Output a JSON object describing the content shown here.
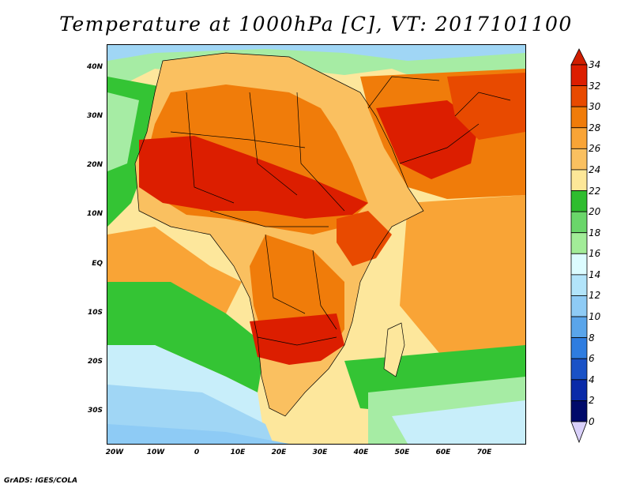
{
  "title": "Temperature at 1000hPa [C], VT: 2017101100",
  "credit": "GrADS: IGES/COLA",
  "axes": {
    "lat_labels": [
      "40N",
      "30N",
      "20N",
      "10N",
      "EQ",
      "10S",
      "20S",
      "30S"
    ],
    "lon_labels": [
      "20W",
      "10W",
      "0",
      "10E",
      "20E",
      "30E",
      "40E",
      "50E",
      "60E",
      "70E"
    ],
    "lat_range": [
      -36,
      45
    ],
    "lon_range": [
      -22,
      80
    ]
  },
  "colorbar": {
    "labels": [
      "34",
      "32",
      "30",
      "28",
      "26",
      "24",
      "22",
      "20",
      "18",
      "16",
      "14",
      "12",
      "10",
      "8",
      "6",
      "4",
      "2",
      "0"
    ],
    "colors": [
      "#a00000",
      "#dc1e00",
      "#e84a00",
      "#f07c0a",
      "#f9a436",
      "#fac060",
      "#fde798",
      "#2fbd2f",
      "#6ad66a",
      "#a2ec98",
      "#dcfcff",
      "#b2e4fa",
      "#8ecbf5",
      "#5aa5ea",
      "#2f7de0",
      "#1a52c6",
      "#0a2aa8",
      "#000a6a"
    ],
    "end_colors": {
      "top": "#d01e00",
      "bottom": "#d9d0fa"
    }
  },
  "map_colors": {
    "ocean_cold": "#c8eefa",
    "ocean_cool": "#a0d6f5",
    "ocean_mild": "#a6eca4",
    "ocean_green": "#34c434",
    "ocean_warm": "#fde79c",
    "ocean_hot": "#f9a436",
    "land_hot": "#e84a00",
    "land_very_hot": "#dc1e00",
    "land_warm": "#f07c0a",
    "land_mild": "#fac060",
    "border": "#000000"
  }
}
